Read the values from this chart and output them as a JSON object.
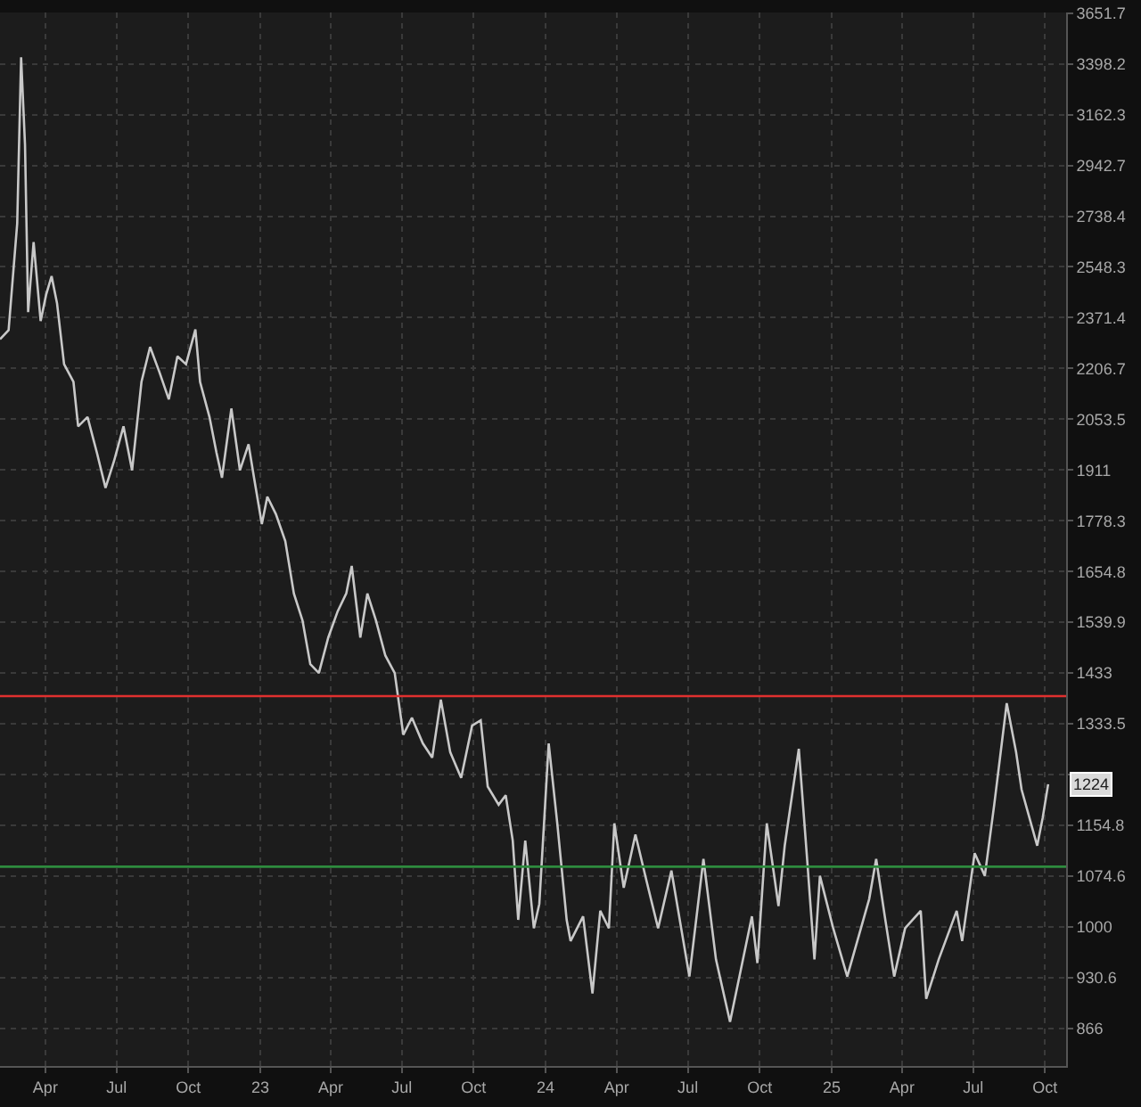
{
  "chart_data": {
    "type": "line",
    "log": "y",
    "grid": true,
    "line_style": "solid",
    "xlim": [
      "2022-02-02",
      "2025-10-28"
    ],
    "ylim": [
      821,
      3655
    ],
    "xticks": [
      {
        "value": "2022-04-01",
        "label": "Apr"
      },
      {
        "value": "2022-07-01",
        "label": "Jul"
      },
      {
        "value": "2022-10-01",
        "label": "Oct"
      },
      {
        "value": "2023-01-01",
        "label": "23"
      },
      {
        "value": "2023-04-01",
        "label": "Apr"
      },
      {
        "value": "2023-07-01",
        "label": "Jul"
      },
      {
        "value": "2023-10-01",
        "label": "Oct"
      },
      {
        "value": "2024-01-01",
        "label": "24"
      },
      {
        "value": "2024-04-01",
        "label": "Apr"
      },
      {
        "value": "2024-07-01",
        "label": "Jul"
      },
      {
        "value": "2024-10-01",
        "label": "Oct"
      },
      {
        "value": "2025-01-01",
        "label": "25"
      },
      {
        "value": "2025-04-01",
        "label": "Apr"
      },
      {
        "value": "2025-07-01",
        "label": "Jul"
      },
      {
        "value": "2025-10-01",
        "label": "Oct"
      }
    ],
    "yticks": [
      866,
      930.6,
      1000,
      1074.6,
      1154.8,
      {
        "value": 1240.9,
        "label": null
      },
      1333.5,
      1433,
      1539.9,
      1654.8,
      1778.3,
      1911,
      2053.5,
      2206.7,
      2371.4,
      2548.3,
      2738.4,
      2942.7,
      3162.3,
      3398.2,
      3651.7
    ],
    "ref_lines": [
      {
        "axis": "y",
        "value": 1387,
        "label": null,
        "color": "#e0302f"
      },
      {
        "axis": "y",
        "value": 1089,
        "label": null,
        "color": "#2e8b3e"
      }
    ],
    "annotations": [
      {
        "text": "1224",
        "y": 1224
      }
    ],
    "series": [
      {
        "color": "#c8c8c8",
        "x": [
          "2022-02-02",
          "2022-02-13",
          "2022-02-24",
          "2022-03-01",
          "2022-03-06",
          "2022-03-10",
          "2022-03-17",
          "2022-03-26",
          "2022-04-02",
          "2022-04-09",
          "2022-04-16",
          "2022-04-25",
          "2022-05-07",
          "2022-05-13",
          "2022-05-25",
          "2022-06-06",
          "2022-06-17",
          "2022-06-28",
          "2022-07-10",
          "2022-07-21",
          "2022-08-02",
          "2022-08-13",
          "2022-08-25",
          "2022-09-06",
          "2022-09-17",
          "2022-09-28",
          "2022-10-10",
          "2022-10-16",
          "2022-10-28",
          "2022-11-06",
          "2022-11-13",
          "2022-11-25",
          "2022-12-06",
          "2022-12-17",
          "2022-12-24",
          "2023-01-03",
          "2023-01-10",
          "2023-01-21",
          "2023-02-02",
          "2023-02-13",
          "2023-02-24",
          "2023-03-06",
          "2023-03-17",
          "2023-03-29",
          "2023-04-10",
          "2023-04-21",
          "2023-04-28",
          "2023-05-09",
          "2023-05-18",
          "2023-05-29",
          "2023-06-10",
          "2023-06-22",
          "2023-07-03",
          "2023-07-14",
          "2023-07-28",
          "2023-08-09",
          "2023-08-20",
          "2023-09-01",
          "2023-09-15",
          "2023-09-29",
          "2023-10-10",
          "2023-10-19",
          "2023-11-02",
          "2023-11-11",
          "2023-11-20",
          "2023-11-27",
          "2023-12-06",
          "2023-12-17",
          "2023-12-24",
          "2024-01-05",
          "2024-01-16",
          "2024-01-28",
          "2024-02-02",
          "2024-02-18",
          "2024-03-01",
          "2024-03-11",
          "2024-03-22",
          "2024-03-29",
          "2024-04-10",
          "2024-04-25",
          "2024-05-09",
          "2024-05-24",
          "2024-06-10",
          "2024-07-03",
          "2024-07-21",
          "2024-08-06",
          "2024-08-24",
          "2024-09-21",
          "2024-09-28",
          "2024-10-10",
          "2024-10-25",
          "2024-11-02",
          "2024-11-20",
          "2024-12-01",
          "2024-12-10",
          "2024-12-17",
          "2025-01-03",
          "2025-01-21",
          "2025-02-18",
          "2025-02-27",
          "2025-03-10",
          "2025-03-22",
          "2025-04-05",
          "2025-04-25",
          "2025-05-02",
          "2025-05-18",
          "2025-06-10",
          "2025-06-17",
          "2025-07-03",
          "2025-07-16",
          "2025-07-28",
          "2025-08-13",
          "2025-08-25",
          "2025-09-01",
          "2025-09-21",
          "2025-09-28",
          "2025-10-05"
        ],
        "values": [
          2300,
          2330,
          2710,
          3430,
          3030,
          2390,
          2640,
          2360,
          2450,
          2515,
          2420,
          2220,
          2165,
          2033,
          2060,
          1958,
          1863,
          1936,
          2033,
          1910,
          2165,
          2275,
          2195,
          2112,
          2245,
          2220,
          2332,
          2165,
          2060,
          1958,
          1890,
          2085,
          1910,
          1982,
          1890,
          1770,
          1840,
          1795,
          1728,
          1604,
          1544,
          1451,
          1433,
          1507,
          1564,
          1604,
          1668,
          1507,
          1604,
          1544,
          1469,
          1433,
          1313,
          1345,
          1297,
          1271,
          1380,
          1281,
          1235,
          1330,
          1340,
          1220,
          1189,
          1205,
          1130,
          1010,
          1130,
          998,
          1033,
          1297,
          1158,
          1010,
          980,
          1015,
          910,
          1023,
          998,
          1158,
          1057,
          1140,
          1068,
          998,
          1083,
          932,
          1101,
          955,
          874,
          1015,
          950,
          1158,
          1030,
          1122,
          1287,
          1095,
          955,
          1075,
          998,
          932,
          1040,
          1101,
          1015,
          932,
          998,
          1023,
          903,
          955,
          1023,
          980,
          1110,
          1075,
          1189,
          1373,
          1281,
          1215,
          1122,
          1167,
          1224
        ]
      }
    ]
  }
}
